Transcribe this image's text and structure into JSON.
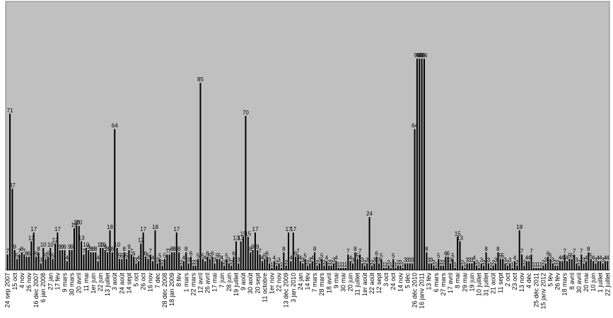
{
  "chart_data": {
    "type": "bar",
    "color": "#000000",
    "background": "#c0c0c0",
    "ylim": [
      0,
      122
    ],
    "categories": [
      "24 sep 2007",
      null,
      null,
      "15 oct",
      null,
      null,
      "4 nov",
      null,
      null,
      "26 nov",
      null,
      null,
      "16 dec 2007",
      null,
      null,
      "6 jan 2008",
      null,
      null,
      "27 jan",
      null,
      null,
      "17 fév",
      null,
      null,
      "9 mars",
      null,
      null,
      "30 mars",
      null,
      null,
      "20 avril",
      null,
      null,
      "11 mai",
      null,
      null,
      "1er juin",
      null,
      null,
      "22 juin",
      null,
      null,
      "13 juillet",
      null,
      null,
      "3 août",
      null,
      null,
      "24 août",
      null,
      null,
      "14 sept",
      null,
      null,
      "5 oct",
      null,
      null,
      "26 oct",
      null,
      null,
      "16 nov",
      null,
      null,
      "7 déc",
      null,
      null,
      "28 déc 2008",
      null,
      null,
      "18 jan 2009",
      null,
      null,
      "8 fév",
      null,
      null,
      "1 mars",
      null,
      null,
      "22 mars",
      null,
      null,
      "12 avril",
      null,
      null,
      "26 avril",
      null,
      null,
      "17 mai",
      null,
      null,
      "7 juin",
      null,
      null,
      "28 juin",
      null,
      null,
      "19 juillet",
      null,
      null,
      "9 août",
      null,
      null,
      "30 août",
      null,
      null,
      "20 sept",
      null,
      null,
      "11 octobre",
      null,
      null,
      "1er nov",
      null,
      null,
      "22 nov",
      null,
      null,
      "13 déc 2009",
      null,
      null,
      "3 jan 2010",
      null,
      null,
      "24 jan",
      null,
      null,
      "14 fév",
      null,
      null,
      "7 mars",
      null,
      null,
      "28 mars",
      null,
      null,
      "18 avril",
      null,
      null,
      "9 mai",
      null,
      null,
      "30 mai",
      null,
      null,
      "20 juin",
      null,
      null,
      "11 juillet",
      null,
      null,
      "1er août",
      null,
      null,
      "22 août",
      null,
      null,
      "12 sept",
      null,
      null,
      "3 oct",
      null,
      null,
      "24 oct",
      null,
      null,
      "14 nov",
      null,
      null,
      "5 déc",
      null,
      null,
      "26 déc 2010",
      null,
      null,
      "16 janv 2011",
      null,
      null,
      "13 fév",
      null,
      null,
      "6 mars",
      null,
      null,
      "27 mars",
      null,
      null,
      "17 avril",
      null,
      null,
      "8 mai",
      null,
      null,
      "29 mai",
      null,
      null,
      "19 juin",
      null,
      null,
      "10 juillet",
      null,
      null,
      "31 juillet",
      null,
      null,
      "21 août",
      null,
      null,
      "11 sept",
      null,
      null,
      "2 oct",
      null,
      null,
      "23 oct",
      null,
      null,
      "13 nov",
      null,
      null,
      "4 déc",
      null,
      null,
      "25 déc 2011",
      null,
      null,
      "15 janv 2012",
      null,
      null,
      "5 fév",
      null,
      null,
      "26 fév",
      null,
      null,
      "18 mars",
      null,
      null,
      "8 avril",
      null,
      null,
      "30 avril",
      null,
      null,
      "20 mai",
      null,
      null,
      "10 juin",
      null,
      null,
      "1 juillet",
      null,
      null,
      "22 juillet"
    ],
    "values": [
      7,
      71,
      37,
      9,
      5,
      7,
      8,
      7,
      6,
      6,
      13,
      17,
      6,
      8,
      3,
      10,
      5,
      6,
      10,
      5,
      12,
      17,
      9,
      9,
      9,
      4,
      9,
      9,
      19,
      20,
      20,
      13,
      7,
      10,
      9,
      8,
      8,
      8,
      4,
      10,
      10,
      9,
      8,
      18,
      8,
      64,
      10,
      5,
      5,
      8,
      5,
      9,
      7,
      6,
      3,
      4,
      12,
      17,
      6,
      5,
      7,
      4,
      18,
      3,
      5,
      2,
      5,
      7,
      7,
      8,
      8,
      17,
      8,
      2,
      4,
      8,
      3,
      6,
      2,
      2,
      5,
      85,
      5,
      4,
      6,
      5,
      6,
      3,
      5,
      5,
      4,
      2,
      5,
      3,
      2,
      6,
      13,
      3,
      13,
      15,
      70,
      15,
      8,
      9,
      17,
      9,
      7,
      4,
      5,
      6,
      3,
      1,
      4,
      2,
      3,
      1,
      8,
      2,
      17,
      4,
      17,
      6,
      7,
      4,
      3,
      5,
      2,
      3,
      4,
      8,
      2,
      3,
      5,
      2,
      4,
      2,
      2,
      3,
      4,
      1,
      1,
      1,
      1,
      7,
      4,
      3,
      8,
      5,
      7,
      3,
      2,
      3,
      24,
      2,
      3,
      6,
      3,
      5,
      1,
      1,
      2,
      1,
      5,
      1,
      2,
      2,
      1,
      3,
      3,
      3,
      3,
      64,
      96,
      96,
      96,
      96,
      8,
      3,
      3,
      2,
      1,
      5,
      2,
      2,
      6,
      6,
      3,
      5,
      1,
      15,
      13,
      2,
      1,
      3,
      3,
      3,
      4,
      2,
      1,
      3,
      2,
      8,
      3,
      1,
      2,
      3,
      8,
      5,
      5,
      3,
      2,
      3,
      1,
      4,
      2,
      18,
      7,
      2,
      4,
      4,
      7,
      1,
      1,
      1,
      1,
      2,
      3,
      6,
      5,
      3,
      2,
      2,
      4,
      4,
      7,
      4,
      5,
      5,
      7,
      3,
      2,
      7,
      3,
      4,
      8,
      5,
      4,
      3,
      4,
      4,
      3,
      4,
      4
    ]
  }
}
